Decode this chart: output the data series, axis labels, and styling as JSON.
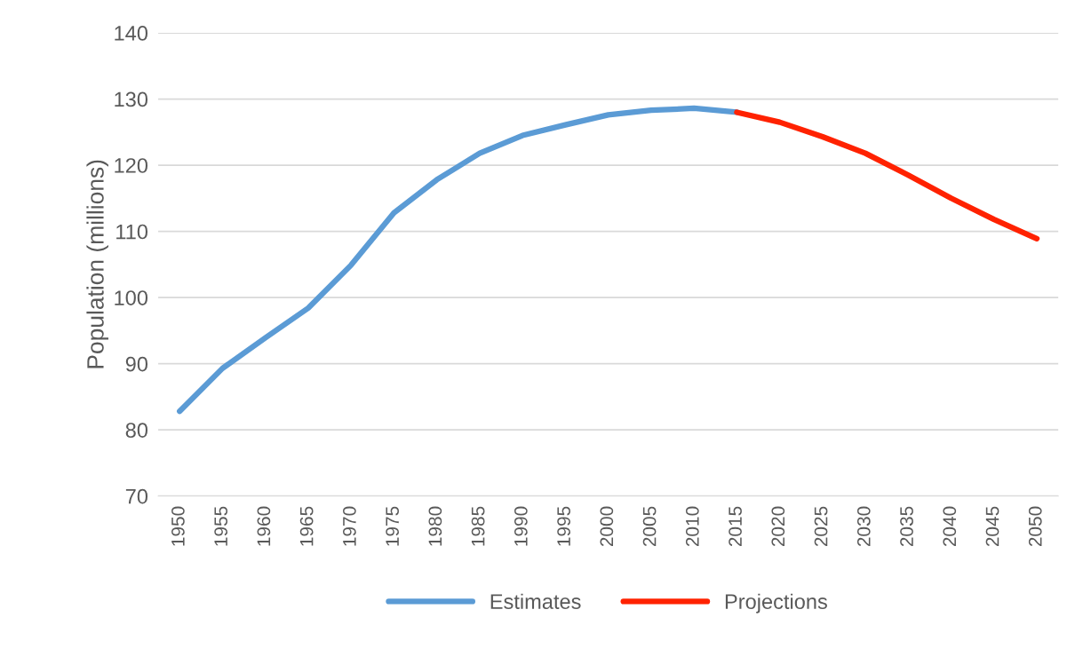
{
  "chart_data": {
    "type": "line",
    "ylabel": "Population (millions)",
    "categories": [
      "1950",
      "1955",
      "1960",
      "1965",
      "1970",
      "1975",
      "1980",
      "1985",
      "1990",
      "1995",
      "2000",
      "2005",
      "2010",
      "2015",
      "2020",
      "2025",
      "2030",
      "2035",
      "2040",
      "2045",
      "2050"
    ],
    "series": [
      {
        "name": "Estimates",
        "color": "#5b9bd5",
        "values": [
          82.8,
          89.3,
          93.9,
          98.4,
          104.9,
          112.8,
          117.8,
          121.8,
          124.5,
          126.1,
          127.6,
          128.3,
          128.6,
          128.0,
          null,
          null,
          null,
          null,
          null,
          null,
          null
        ]
      },
      {
        "name": "Projections",
        "color": "#ff2200",
        "values": [
          null,
          null,
          null,
          null,
          null,
          null,
          null,
          null,
          null,
          null,
          null,
          null,
          null,
          128.0,
          126.5,
          124.3,
          121.8,
          118.5,
          115.0,
          111.8,
          108.9
        ]
      }
    ],
    "ylim": [
      70,
      140
    ],
    "yticks": [
      70,
      80,
      90,
      100,
      110,
      120,
      130,
      140
    ],
    "grid": "y",
    "legend": "bottom",
    "marker": "none",
    "line_style": "solid"
  }
}
